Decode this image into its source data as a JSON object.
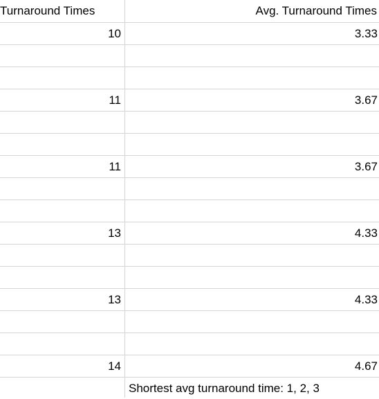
{
  "sheet": {
    "headers": {
      "col_a": "Turnaround Times",
      "col_b": "Avg. Turnaround Times"
    },
    "rows": [
      {
        "a": "10",
        "b": "3.33"
      },
      {
        "a": "",
        "b": ""
      },
      {
        "a": "",
        "b": ""
      },
      {
        "a": "11",
        "b": "3.67"
      },
      {
        "a": "",
        "b": ""
      },
      {
        "a": "",
        "b": ""
      },
      {
        "a": "11",
        "b": "3.67"
      },
      {
        "a": "",
        "b": ""
      },
      {
        "a": "",
        "b": ""
      },
      {
        "a": "13",
        "b": "4.33"
      },
      {
        "a": "",
        "b": ""
      },
      {
        "a": "",
        "b": ""
      },
      {
        "a": "13",
        "b": "4.33"
      },
      {
        "a": "",
        "b": ""
      },
      {
        "a": "",
        "b": ""
      },
      {
        "a": "14",
        "b": "4.67"
      }
    ],
    "note": "Shortest avg turnaround time: 1, 2, 3"
  }
}
